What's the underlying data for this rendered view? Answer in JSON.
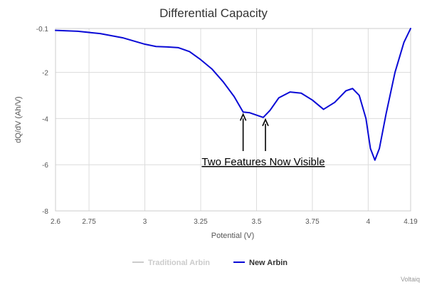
{
  "chart_data": {
    "type": "line",
    "title": "Differential Capacity",
    "xlabel": "Potential (V)",
    "ylabel": "dQ/dV (Ah/V)",
    "xlim": [
      2.6,
      4.19
    ],
    "ylim": [
      -8,
      -0.1
    ],
    "x_ticks": [
      2.6,
      2.75,
      3,
      3.25,
      3.5,
      3.75,
      4,
      4.19
    ],
    "x_tick_labels": [
      "2.6",
      "2.75",
      "3",
      "3.25",
      "3.5",
      "3.75",
      "4",
      "4.19"
    ],
    "y_ticks": [
      -0.1,
      -2,
      -4,
      -6,
      -8
    ],
    "y_tick_labels": [
      "-0.1",
      "-2",
      "-4",
      "-6",
      "-8"
    ],
    "grid": true,
    "legend_position": "bottom-center",
    "series": [
      {
        "name": "Traditional Arbin",
        "color": "#cccccc",
        "visible": false,
        "x": [],
        "y": []
      },
      {
        "name": "New Arbin",
        "color": "#0a0ad6",
        "visible": true,
        "x": [
          2.6,
          2.7,
          2.8,
          2.9,
          3.0,
          3.05,
          3.1,
          3.15,
          3.2,
          3.25,
          3.3,
          3.35,
          3.4,
          3.44,
          3.47,
          3.5,
          3.53,
          3.56,
          3.6,
          3.65,
          3.7,
          3.75,
          3.8,
          3.85,
          3.9,
          3.93,
          3.96,
          3.99,
          4.01,
          4.03,
          4.05,
          4.08,
          4.12,
          4.16,
          4.19
        ],
        "y": [
          -0.18,
          -0.22,
          -0.32,
          -0.5,
          -0.78,
          -0.88,
          -0.9,
          -0.93,
          -1.1,
          -1.45,
          -1.85,
          -2.4,
          -3.05,
          -3.72,
          -3.75,
          -3.85,
          -3.95,
          -3.65,
          -3.1,
          -2.85,
          -2.9,
          -3.2,
          -3.6,
          -3.3,
          -2.8,
          -2.7,
          -3.0,
          -4.0,
          -5.3,
          -5.8,
          -5.3,
          -3.8,
          -2.0,
          -0.7,
          -0.1
        ]
      }
    ],
    "annotation": {
      "text": "Two Features Now Visible",
      "arrow_targets": [
        {
          "x": 3.44,
          "y": -3.72
        },
        {
          "x": 3.54,
          "y": -3.95
        }
      ]
    },
    "credit": "Voltaiq"
  }
}
